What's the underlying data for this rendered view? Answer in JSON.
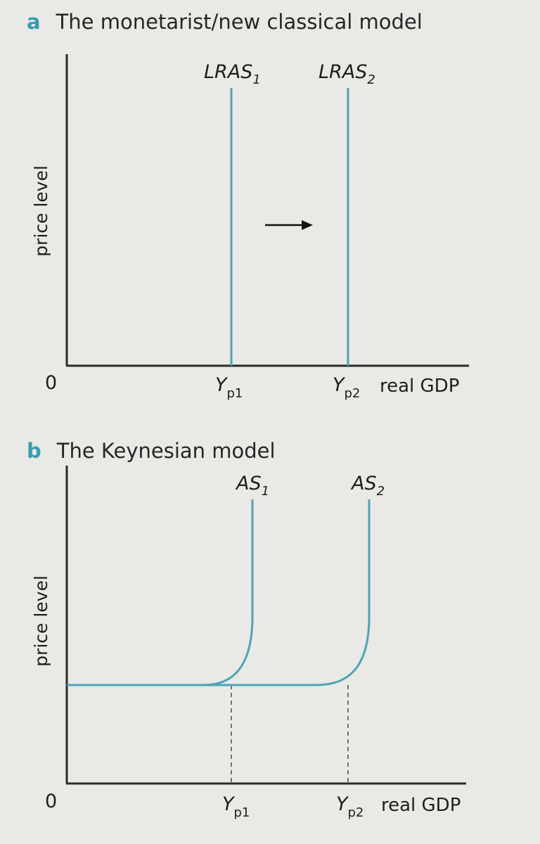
{
  "panel_a": {
    "letter": "a",
    "title": "The monetarist/new classical model",
    "y_axis_label": "price level",
    "x_axis_label": "real GDP",
    "origin_label": "0",
    "curves": [
      {
        "main": "LRAS",
        "sub": "1"
      },
      {
        "main": "LRAS",
        "sub": "2"
      }
    ],
    "x_ticks": [
      {
        "main": "Y",
        "sub": "p1"
      },
      {
        "main": "Y",
        "sub": "p2"
      }
    ],
    "shift_arrow": "right"
  },
  "panel_b": {
    "letter": "b",
    "title": "The Keynesian model",
    "y_axis_label": "price level",
    "x_axis_label": "real GDP",
    "origin_label": "0",
    "curves": [
      {
        "main": "AS",
        "sub": "1"
      },
      {
        "main": "AS",
        "sub": "2"
      }
    ],
    "x_ticks": [
      {
        "main": "Y",
        "sub": "p1"
      },
      {
        "main": "Y",
        "sub": "p2"
      }
    ]
  },
  "colors": {
    "accent": "#3a9bb0",
    "curve": "#4ea3b4",
    "axis": "#2a2a2a",
    "background": "#e9e9e6"
  }
}
